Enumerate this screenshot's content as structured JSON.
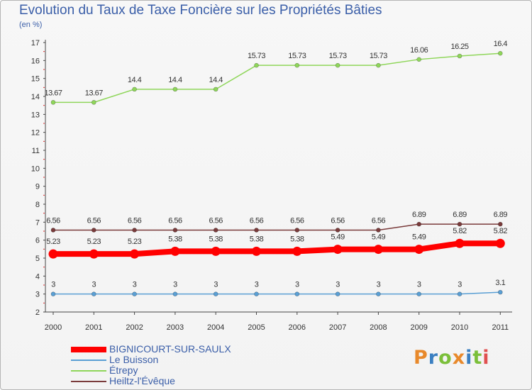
{
  "title": "Evolution du Taux de Taxe Foncière sur les Propriétés Bâties",
  "unit_label": "(en %)",
  "logo": {
    "text": "Proxiti",
    "colors": [
      "#e8892b",
      "#3a7fc1",
      "#7bbf3a",
      "#e8892b",
      "#3a7fc1",
      "#7bbf3a",
      "#e05050"
    ]
  },
  "chart_data": {
    "type": "line",
    "title": "Evolution du Taux de Taxe Foncière sur les Propriétés Bâties",
    "ylabel": "(en %)",
    "xlabel": "",
    "ylim": [
      2,
      17
    ],
    "yticks": [
      2,
      3,
      4,
      5,
      6,
      7,
      8,
      9,
      10,
      11,
      12,
      13,
      14,
      15,
      16,
      17
    ],
    "grid": false,
    "legend_position": "bottom-left",
    "categories": [
      "2000",
      "2001",
      "2002",
      "2003",
      "2004",
      "2005",
      "2006",
      "2007",
      "2008",
      "2009",
      "2010",
      "2011"
    ],
    "series": [
      {
        "name": "BIGNICOURT-SUR-SAULX",
        "color": "#ff0000",
        "thick": true,
        "values": [
          5.23,
          5.23,
          5.23,
          5.38,
          5.38,
          5.38,
          5.38,
          5.49,
          5.49,
          5.49,
          5.82,
          5.82
        ],
        "labels": [
          "5.23",
          "5.23",
          "5.23",
          "5.38",
          "5.38",
          "5.38",
          "5.38",
          "5.49",
          "5.49",
          "5.49",
          "5.82",
          "5.82"
        ]
      },
      {
        "name": "Le Buisson",
        "color": "#5a9fd4",
        "thick": false,
        "values": [
          3,
          3,
          3,
          3,
          3,
          3,
          3,
          3,
          3,
          3,
          3,
          3.1
        ],
        "labels": [
          "3",
          "3",
          "3",
          "3",
          "3",
          "3",
          "3",
          "3",
          "3",
          "3",
          "3",
          "3.1"
        ]
      },
      {
        "name": "Étrepy",
        "color": "#8fd65a",
        "thick": false,
        "values": [
          13.67,
          13.67,
          14.4,
          14.4,
          14.4,
          15.73,
          15.73,
          15.73,
          15.73,
          16.06,
          16.25,
          16.4
        ],
        "labels": [
          "13.67",
          "13.67",
          "14.4",
          "14.4",
          "14.4",
          "15.73",
          "15.73",
          "15.73",
          "15.73",
          "16.06",
          "16.25",
          "16.4"
        ]
      },
      {
        "name": "Heiltz-l'Évêque",
        "color": "#7a3b3b",
        "thick": false,
        "values": [
          6.56,
          6.56,
          6.56,
          6.56,
          6.56,
          6.56,
          6.56,
          6.56,
          6.56,
          6.89,
          6.89,
          6.89
        ],
        "labels": [
          "6.56",
          "6.56",
          "6.56",
          "6.56",
          "6.56",
          "6.56",
          "6.56",
          "6.56",
          "6.56",
          "6.89",
          "6.89",
          "6.89"
        ]
      }
    ]
  }
}
